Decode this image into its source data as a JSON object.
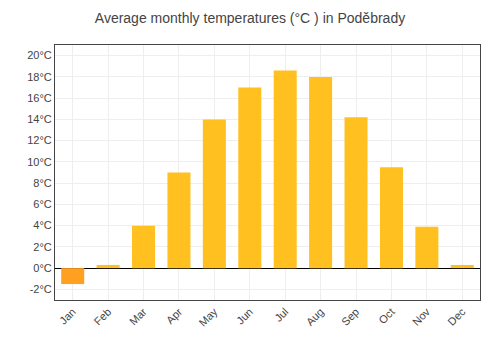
{
  "chart_data": {
    "type": "bar",
    "title": "Average monthly temperatures (°C ) in Poděbrady",
    "categories": [
      "Jan",
      "Feb",
      "Mar",
      "Apr",
      "May",
      "Jun",
      "Jul",
      "Aug",
      "Sep",
      "Oct",
      "Nov",
      "Dec"
    ],
    "values": [
      -1.5,
      0.3,
      4.0,
      9.0,
      14.0,
      17.0,
      18.6,
      18.0,
      14.2,
      9.5,
      3.9,
      0.3
    ],
    "colors": [
      "#FFA020",
      "#FFC020",
      "#FFC020",
      "#FFC020",
      "#FFC020",
      "#FFC020",
      "#FFC020",
      "#FFC020",
      "#FFC020",
      "#FFC020",
      "#FFC020",
      "#FFC020"
    ],
    "ylim": [
      -3,
      21
    ],
    "yticks": [
      {
        "value": -2,
        "label": "-2°C"
      },
      {
        "value": 0,
        "label": "0°C"
      },
      {
        "value": 2,
        "label": "2°C"
      },
      {
        "value": 4,
        "label": "4°C"
      },
      {
        "value": 6,
        "label": "6°C"
      },
      {
        "value": 8,
        "label": "8°C"
      },
      {
        "value": 10,
        "label": "10°C"
      },
      {
        "value": 12,
        "label": "12°C"
      },
      {
        "value": 14,
        "label": "14°C"
      },
      {
        "value": 16,
        "label": "16°C"
      },
      {
        "value": 18,
        "label": "18°C"
      },
      {
        "value": 20,
        "label": "20°C"
      }
    ],
    "grid": true
  }
}
